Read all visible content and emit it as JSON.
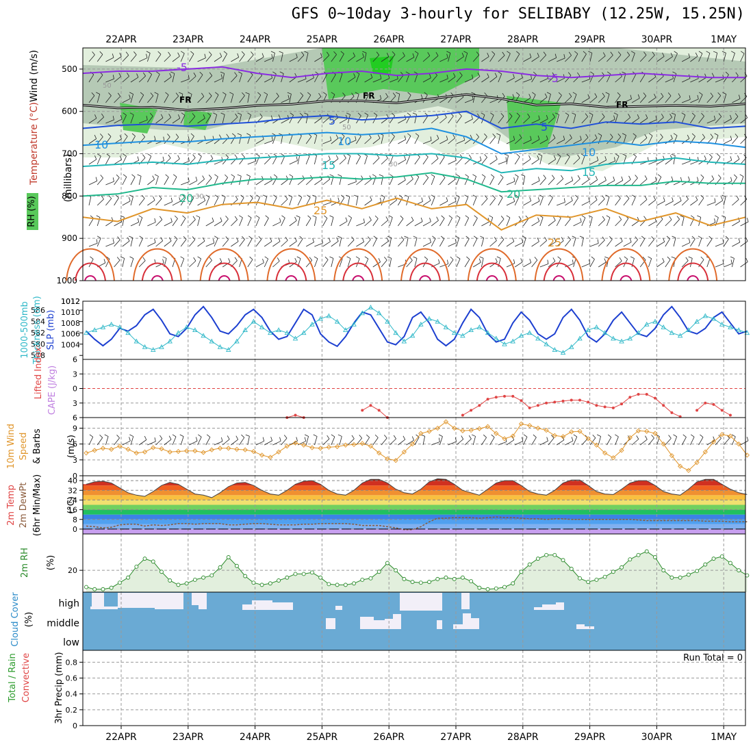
{
  "title": "GFS 0~10day 3-hourly for SELIBABY (12.25W, 15.25N)",
  "chart_data": {
    "type": "meteogram",
    "dates": [
      "22APR",
      "23APR",
      "24APR",
      "25APR",
      "26APR",
      "27APR",
      "28APR",
      "29APR",
      "30APR",
      "1MAY"
    ],
    "panels": [
      {
        "id": "upper-air",
        "ylabel_parts": [
          "RH (%)",
          "Temperature (°C)",
          "Wind (m/s)"
        ],
        "ylabel2": "(millibars)",
        "yticks": [
          500,
          600,
          700,
          800,
          900,
          1000
        ],
        "ylim": [
          450,
          1000
        ],
        "contours": [
          {
            "label": "-5",
            "level_mb": [
              510,
              505,
              505,
              500,
              495,
              510,
              520,
              510,
              505,
              515,
              510,
              500,
              505,
              515,
              520,
              515,
              510,
              515,
              520,
              520
            ]
          },
          {
            "label": "FR",
            "level_mb": [
              585,
              592,
              590,
              597,
              593,
              586,
              583,
              575,
              575,
              580,
              570,
              560,
              570,
              585,
              582,
              590,
              588,
              586,
              588,
              582
            ]
          },
          {
            "label": "5",
            "level_mb": [
              640,
              633,
              630,
              635,
              630,
              625,
              615,
              610,
              620,
              615,
              610,
              600,
              640,
              630,
              640,
              625,
              630,
              625,
              640,
              635
            ]
          },
          {
            "label": "10",
            "level_mb": [
              680,
              675,
              670,
              672,
              665,
              660,
              655,
              650,
              655,
              650,
              640,
              660,
              700,
              690,
              680,
              670,
              680,
              670,
              675,
              685
            ]
          },
          {
            "label": "15",
            "level_mb": [
              730,
              725,
              720,
              725,
              715,
              710,
              705,
              700,
              700,
              705,
              700,
              710,
              745,
              735,
              740,
              725,
              720,
              710,
              720,
              725
            ]
          },
          {
            "label": "20",
            "level_mb": [
              800,
              795,
              780,
              785,
              770,
              760,
              760,
              755,
              760,
              755,
              745,
              760,
              790,
              785,
              780,
              775,
              775,
              765,
              770,
              770
            ]
          },
          {
            "label": "25",
            "level_mb": [
              850,
              860,
              830,
              840,
              820,
              815,
              830,
              810,
              830,
              805,
              830,
              820,
              880,
              845,
              850,
              830,
              860,
              840,
              870,
              850
            ]
          }
        ],
        "contour_labels": [
          "-5",
          "-5",
          "FR",
          "FR",
          "FR",
          "5",
          "5",
          "10",
          "10",
          "10",
          "15",
          "15",
          "20",
          "20",
          "25",
          "25",
          "50",
          "50",
          "30",
          "30"
        ]
      },
      {
        "id": "slp-thickness",
        "ylabel_parts": [
          "1000-500mb",
          "Thickness (dm)",
          "SLP (mb)"
        ],
        "yticks_left": [
          578,
          580,
          582,
          584,
          586
        ],
        "yticks_right": [
          1004,
          1006,
          1008,
          1010,
          1012
        ],
        "series": [
          {
            "name": "SLP (mb)",
            "values": [
              1006.5,
              1005.0,
              1003.8,
              1005.0,
              1007.0,
              1006.5,
              1007.5,
              1009.5,
              1010.5,
              1008.5,
              1006.0,
              1005.5,
              1007.0,
              1009.5,
              1011.0,
              1009.0,
              1006.5,
              1006.0,
              1007.5,
              1009.5,
              1010.5,
              1009.0,
              1006.5,
              1005.0,
              1005.5,
              1008.0,
              1010.5,
              1009.5,
              1006.0,
              1004.5,
              1003.7,
              1005.5,
              1008.0,
              1010.0,
              1009.5,
              1007.0,
              1004.5,
              1004.0,
              1005.5,
              1009.0,
              1010.0,
              1008.0,
              1005.0,
              1003.8,
              1005.0,
              1008.0,
              1010.5,
              1009.0,
              1006.0,
              1004.5,
              1005.0,
              1008.0,
              1010.0,
              1008.5,
              1006.0,
              1005.0,
              1006.0,
              1009.0,
              1010.5,
              1008.5,
              1005.5,
              1004.5,
              1006.0,
              1008.5,
              1010.0,
              1008.0,
              1006.0,
              1005.5,
              1007.0,
              1009.5,
              1011.0,
              1009.0,
              1006.5,
              1006.0,
              1007.0,
              1009.0,
              1010.0,
              1008.0,
              1006.0,
              1006.5
            ]
          },
          {
            "name": "1000-500mb Thickness (dm)",
            "values": [
              582.0,
              582.5,
              583.0,
              583.5,
              583.0,
              582.0,
              580.5,
              579.5,
              579.0,
              579.5,
              580.5,
              582.0,
              583.0,
              582.5,
              581.5,
              580.5,
              579.5,
              579.0,
              580.5,
              582.5,
              584.0,
              583.0,
              582.0,
              582.5,
              582.0,
              581.0,
              582.0,
              583.5,
              584.5,
              585.0,
              584.0,
              582.5,
              583.5,
              585.5,
              586.5,
              585.5,
              584.0,
              582.0,
              580.5,
              581.5,
              583.5,
              584.5,
              584.0,
              583.0,
              582.0,
              581.5,
              582.5,
              583.0,
              582.0,
              581.0,
              580.0,
              580.5,
              581.5,
              582.0,
              581.0,
              580.0,
              579.0,
              578.5,
              579.5,
              581.0,
              582.5,
              583.0,
              582.0,
              581.0,
              580.5,
              581.0,
              582.0,
              583.5,
              584.0,
              583.0,
              582.0,
              581.5,
              582.5,
              584.0,
              585.0,
              584.5,
              583.5,
              583.0,
              582.5,
              582.0
            ]
          }
        ]
      },
      {
        "id": "cape-li",
        "ylabel_parts": [
          "CAPE (J/kg)",
          "Lifted Index"
        ],
        "yticks": [
          -3,
          0,
          3,
          6
        ],
        "ylim": [
          -6,
          6
        ],
        "series": [
          {
            "name": "Lifted Index",
            "values": [
              null,
              null,
              null,
              null,
              null,
              null,
              null,
              null,
              null,
              null,
              null,
              null,
              null,
              null,
              null,
              null,
              null,
              null,
              null,
              null,
              null,
              null,
              null,
              null,
              6.0,
              5.5,
              6.0,
              null,
              null,
              null,
              null,
              null,
              null,
              4.5,
              3.5,
              4.5,
              6.0,
              null,
              null,
              null,
              null,
              null,
              null,
              null,
              null,
              5.5,
              4.5,
              3.5,
              2.2,
              1.8,
              1.6,
              1.6,
              2.5,
              4.0,
              3.5,
              3.0,
              2.8,
              2.6,
              2.4,
              2.4,
              2.8,
              3.5,
              3.8,
              4.0,
              3.2,
              1.8,
              1.2,
              1.2,
              2.0,
              3.5,
              5.0,
              5.8,
              null,
              4.5,
              3.0,
              3.3,
              4.5,
              5.5,
              null,
              null
            ]
          }
        ]
      },
      {
        "id": "wind10m",
        "ylabel_parts": [
          "10m Wind",
          "Speed",
          "& Barbs"
        ],
        "unit": "(m/s)",
        "yticks": [
          0,
          3,
          6,
          9
        ],
        "ylim": [
          0,
          11
        ],
        "series": [
          {
            "name": "10m Wind Speed",
            "values": [
              4.3,
              4.8,
              5.2,
              5.0,
              5.6,
              5.0,
              4.3,
              4.5,
              5.3,
              5.1,
              4.5,
              4.6,
              4.7,
              4.7,
              4.4,
              4.9,
              5.2,
              5.2,
              5.0,
              4.9,
              4.6,
              3.9,
              3.5,
              4.5,
              5.6,
              6.2,
              5.8,
              5.3,
              5.2,
              5.4,
              5.5,
              5.8,
              5.9,
              6.1,
              5.6,
              4.3,
              3.2,
              2.9,
              4.5,
              6.0,
              8.0,
              8.4,
              9.0,
              10.2,
              9.0,
              8.5,
              8.6,
              8.9,
              9.3,
              8.0,
              7.0,
              7.5,
              9.8,
              9.5,
              9.0,
              8.6,
              7.6,
              7.4,
              8.3,
              8.4,
              7.0,
              5.8,
              4.3,
              3.4,
              4.8,
              7.2,
              8.5,
              8.4,
              8.0,
              6.0,
              3.8,
              1.8,
              1.0,
              2.5,
              4.5,
              6.4,
              7.8,
              7.5,
              6.0,
              3.9
            ]
          }
        ]
      },
      {
        "id": "temp2m",
        "ylabel_parts": [
          "2m Temp",
          "2m DewPt",
          "(6hr Min/Max)"
        ],
        "unit": "(°C)",
        "yticks": [
          0,
          8,
          16,
          24,
          32,
          40
        ],
        "ylim": [
          -4,
          44
        ],
        "series": [
          {
            "name": "2m Temp",
            "values": [
              37,
              39,
              39.5,
              38,
              34,
              30,
              28,
              27,
              31,
              36,
              38.5,
              37,
              33,
              29,
              28,
              26,
              30,
              35,
              38,
              38.5,
              36,
              32,
              29,
              28,
              32,
              37,
              39.5,
              40,
              37,
              32,
              29,
              28,
              32,
              38,
              41,
              41,
              38,
              33,
              30,
              29,
              33,
              39,
              41.5,
              41,
              37,
              32,
              30,
              28,
              33,
              38,
              40,
              40,
              36,
              31,
              29,
              28,
              32,
              38,
              40.5,
              40.5,
              36,
              31,
              29,
              28.5,
              33,
              38,
              40,
              40,
              36,
              31,
              29,
              28,
              33,
              39,
              41,
              41,
              37,
              33,
              30,
              28.5
            ]
          },
          {
            "name": "2m DewPt",
            "values": [
              2.5,
              2,
              1,
              1.5,
              3.5,
              4,
              4,
              2.5,
              3.5,
              3,
              3.5,
              4.5,
              4.5,
              4,
              4.5,
              4.5,
              4.5,
              3.5,
              3.5,
              4,
              4.5,
              4.5,
              4,
              3.5,
              3.5,
              3.5,
              4,
              4,
              4.5,
              4.5,
              4.5,
              4.5,
              4,
              3,
              3,
              3,
              2,
              1,
              -0.5,
              -0.5,
              2,
              6,
              9,
              9,
              9.5,
              9.5,
              9.5,
              9,
              9.5,
              10,
              9.5,
              9.5,
              9,
              8.5,
              8.5,
              8,
              8.5,
              8.5,
              8,
              8,
              8,
              8,
              8,
              8,
              8,
              8,
              7.5,
              7,
              7,
              7,
              7,
              7,
              7,
              7,
              6.5,
              6.5,
              6.5,
              6,
              6,
              6
            ]
          }
        ]
      },
      {
        "id": "rh2m",
        "ylabel_parts": [
          "2m RH"
        ],
        "unit": "(%)",
        "yticks": [
          20
        ],
        "ylim": [
          5,
          45
        ],
        "series": [
          {
            "name": "2m RH",
            "values": [
              8.5,
              7,
              7,
              8,
              11.5,
              15,
              22.5,
              28,
              26,
              19,
              13,
              10,
              11,
              13.5,
              15,
              16.5,
              22,
              29,
              23,
              16,
              11.5,
              10,
              11,
              13,
              15,
              17.5,
              17.5,
              18.5,
              15,
              10.5,
              10,
              10,
              11,
              13.5,
              14.5,
              19,
              25,
              20,
              14,
              12,
              11.5,
              12,
              14,
              15,
              14,
              15,
              12.5,
              8,
              7,
              7.5,
              8.5,
              11,
              19,
              24,
              28,
              30.5,
              30.5,
              27,
              21,
              14.5,
              12,
              13.5,
              15.5,
              19,
              22,
              27.5,
              30.5,
              33,
              29,
              20,
              15,
              15,
              17,
              19.5,
              24,
              28,
              29.5,
              25,
              20,
              16.5
            ]
          }
        ]
      },
      {
        "id": "cloud",
        "ylabel_parts": [
          "Cloud Cover",
          "(%)"
        ],
        "levels": [
          "high",
          "middle",
          "low"
        ]
      },
      {
        "id": "precip",
        "ylabel_parts": [
          "Total / Rain",
          "Convective",
          "3hr Precip (mm)"
        ],
        "yticks": [
          0,
          0.2,
          0.4,
          0.6,
          0.8
        ],
        "ylim": [
          0,
          0.95
        ],
        "annotation": "Run Total = 0"
      }
    ]
  }
}
